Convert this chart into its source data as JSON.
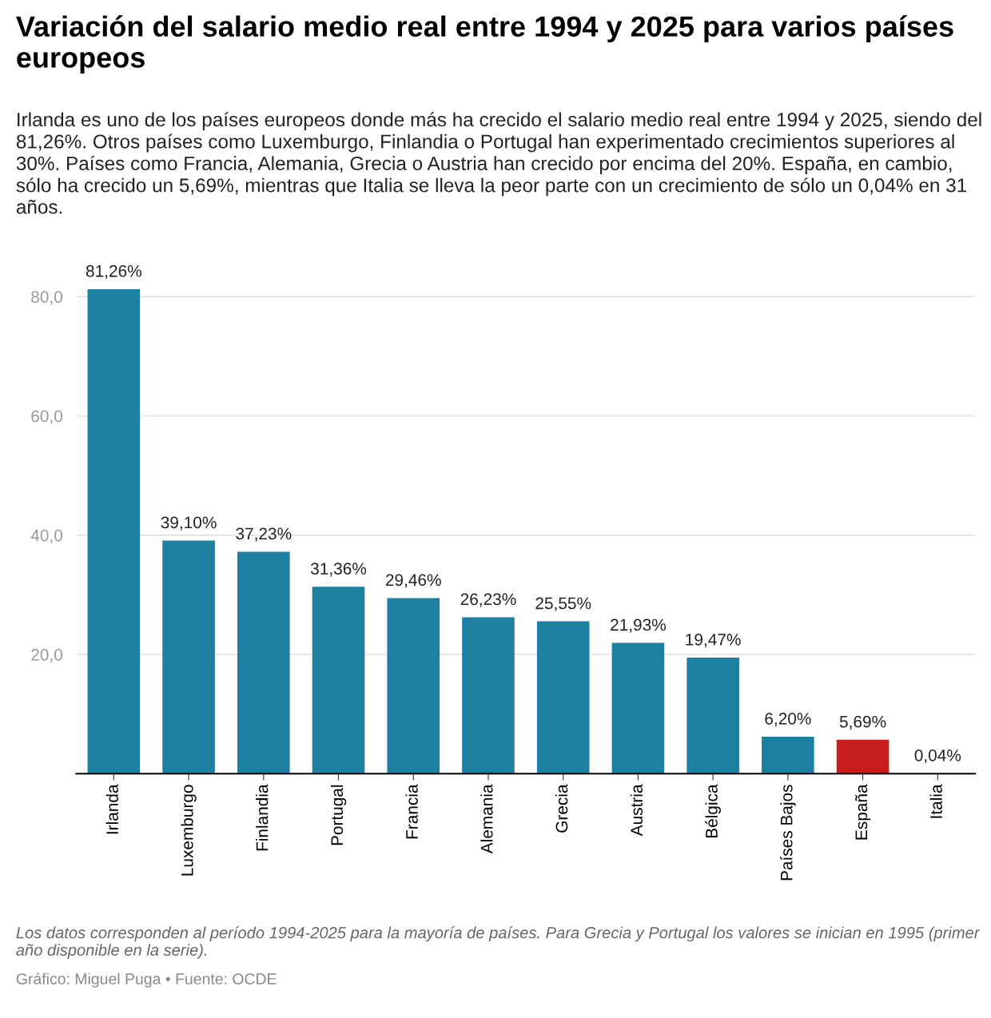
{
  "chart_data": {
    "type": "bar",
    "title": "Variación del salario medio real entre 1994 y 2025 para varios países europeos",
    "subtitle": "Irlanda es uno de los países europeos donde más ha crecido el salario medio real entre 1994 y 2025, siendo del 81,26%. Otros países como Luxemburgo, Finlandia o Portugal han experimentado crecimientos superiores al 30%. Países como Francia, Alemania, Grecia o Austria han crecido por encima del 20%. España, en cambio, sólo ha crecido un 5,69%, mientras que Italia se lleva la peor parte con un crecimiento de sólo un 0,04% en 31 años.",
    "categories": [
      "Irlanda",
      "Luxemburgo",
      "Finlandia",
      "Portugal",
      "Francia",
      "Alemania",
      "Grecia",
      "Austria",
      "Bélgica",
      "Países Bajos",
      "España",
      "Italia"
    ],
    "values": [
      81.26,
      39.1,
      37.23,
      31.36,
      29.46,
      26.23,
      25.55,
      21.93,
      19.47,
      6.2,
      5.69,
      0.04
    ],
    "value_labels": [
      "81,26%",
      "39,10%",
      "37,23%",
      "31,36%",
      "29,46%",
      "26,23%",
      "25,55%",
      "21,93%",
      "19,47%",
      "6,20%",
      "5,69%",
      "0,04%"
    ],
    "colors": [
      "#1d80a1",
      "#1d80a1",
      "#1d80a1",
      "#1d80a1",
      "#1d80a1",
      "#1d80a1",
      "#1d80a1",
      "#1d80a1",
      "#1d80a1",
      "#1d80a1",
      "#c71e1d",
      "#1d80a1"
    ],
    "ylim": [
      0,
      81.26
    ],
    "yticks": [
      {
        "value": 20,
        "label": "20,0"
      },
      {
        "value": 40,
        "label": "40,0"
      },
      {
        "value": 60,
        "label": "60,0"
      },
      {
        "value": 80,
        "label": "80,0"
      }
    ],
    "grid": "y",
    "annotations": [
      "Los datos corresponden al período 1994-2025 para la mayoría de países. Para Grecia y Portugal los valores se inician en 1995 (primer año disponible en la serie).",
      "Gráfico: Miguel Puga • Fuente: OCDE"
    ]
  }
}
